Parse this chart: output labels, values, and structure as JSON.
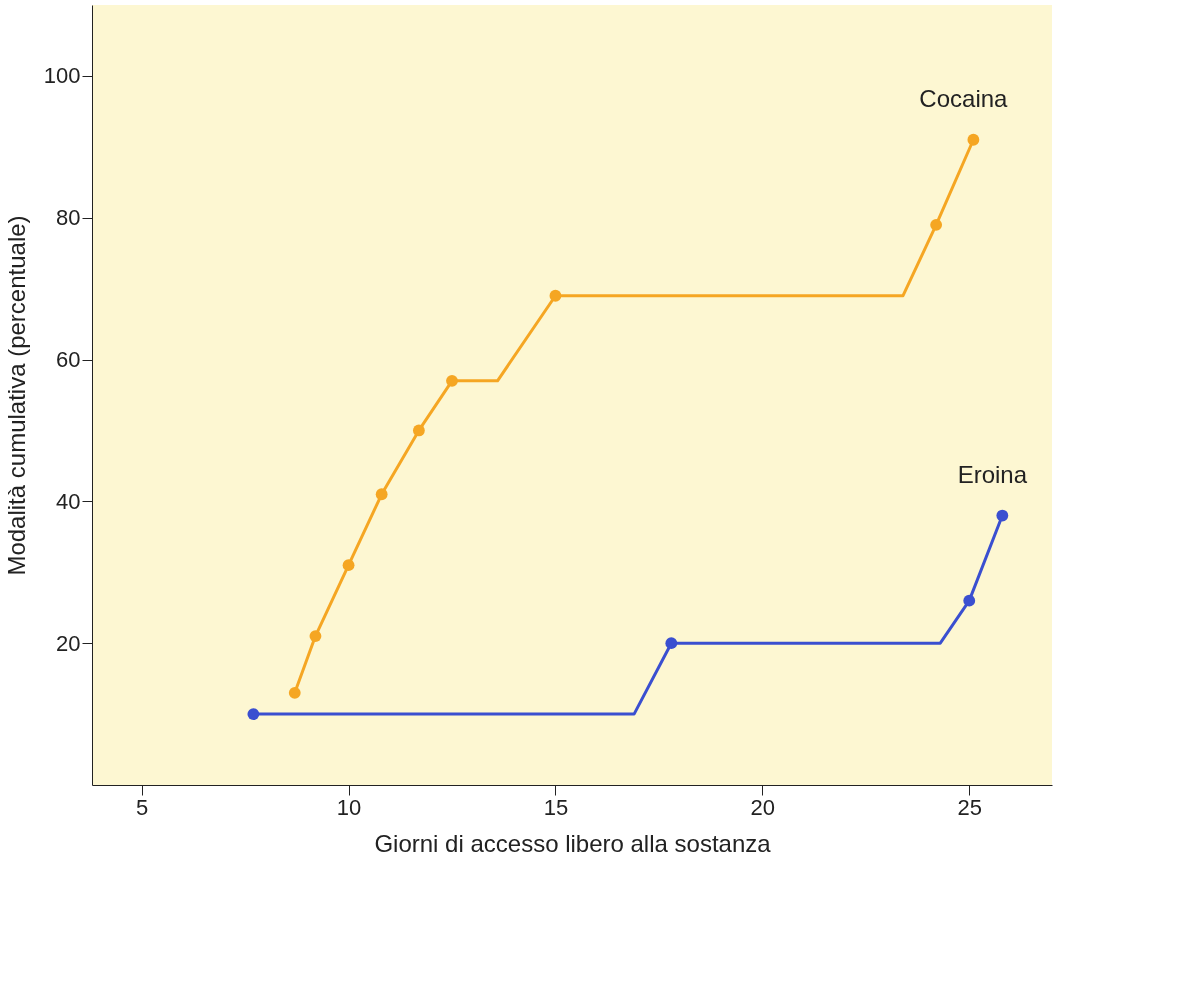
{
  "chart_data": {
    "type": "line",
    "xlabel": "Giorni di accesso libero alla sostanza",
    "ylabel": "Modalità cumulativa (percentuale)",
    "xlim": [
      3.8,
      27
    ],
    "ylim": [
      0,
      110
    ],
    "xticks": [
      5,
      10,
      15,
      20,
      25
    ],
    "yticks": [
      20,
      40,
      60,
      80,
      100
    ],
    "grid": false,
    "legend": false,
    "line_style": "solid",
    "series": [
      {
        "name": "Cocaina",
        "type": "line",
        "color": "#f5a623",
        "marker": "none",
        "x": [
          8.7,
          9.2,
          10.0,
          10.8,
          11.7,
          12.5,
          13.6,
          15.0,
          23.4,
          24.2,
          25.1
        ],
        "values": [
          13,
          21,
          31,
          41,
          50,
          57,
          57,
          69,
          69,
          79,
          91
        ]
      },
      {
        "type": "scatter",
        "color": "#f5a623",
        "marker": "circle",
        "x": [
          8.7,
          9.2,
          10.0,
          10.8,
          11.7,
          12.5,
          15.0,
          24.2,
          25.1
        ],
        "values": [
          13,
          21,
          31,
          41,
          50,
          57,
          69,
          79,
          91
        ]
      },
      {
        "name": "Eroina",
        "type": "line",
        "color": "#3a4fd0",
        "marker": "none",
        "x": [
          7.7,
          16.9,
          17.8,
          24.3,
          25.0,
          25.8
        ],
        "values": [
          10,
          10,
          20,
          20,
          26,
          38
        ]
      },
      {
        "type": "scatter",
        "color": "#3a4fd0",
        "marker": "circle",
        "x": [
          7.7,
          17.8,
          25.0,
          25.8
        ],
        "values": [
          10,
          20,
          26,
          38
        ]
      }
    ]
  }
}
